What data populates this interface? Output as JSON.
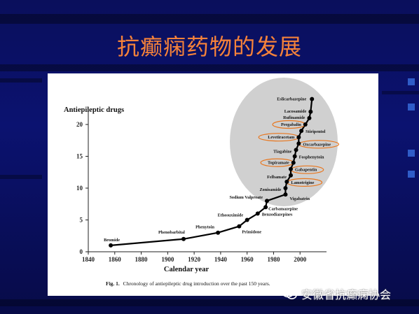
{
  "slide": {
    "title": "抗癫痫药物的发展",
    "watermark": "安徽省抗癫痫协会"
  },
  "chart_data": {
    "type": "line",
    "title": "",
    "ylabel": "Antiepileptic drugs",
    "xlabel": "Calendar year",
    "xlim": [
      1840,
      2020
    ],
    "ylim": [
      0,
      22
    ],
    "x_ticks": [
      1840,
      1860,
      1880,
      1900,
      1920,
      1940,
      1960,
      1980,
      2000
    ],
    "y_ticks": [
      0,
      5,
      10,
      15,
      20
    ],
    "caption_bold": "Fig. 1.",
    "caption_text": "Chronology of antiepileptic drug introduction over the past 150 years.",
    "series": [
      {
        "points": [
          {
            "x": 1857,
            "y": 1,
            "label": "Bromide",
            "circled": false
          },
          {
            "x": 1912,
            "y": 2,
            "label": "Phenobarbital",
            "circled": false
          },
          {
            "x": 1938,
            "y": 3,
            "label": "Phenytoin",
            "circled": false
          },
          {
            "x": 1954,
            "y": 4,
            "label": "Primidone",
            "circled": false
          },
          {
            "x": 1960,
            "y": 5,
            "label": "Ethosuximide",
            "circled": false
          },
          {
            "x": 1968,
            "y": 6,
            "label": "Benzodiazepines",
            "circled": false
          },
          {
            "x": 1974,
            "y": 7,
            "label": "Carbamazepine",
            "circled": false
          },
          {
            "x": 1975,
            "y": 8,
            "label": "Sodium Valproate",
            "circled": false
          },
          {
            "x": 1989,
            "y": 9,
            "label": "Vigabatrin",
            "circled": false
          },
          {
            "x": 1989,
            "y": 10,
            "label": "Zonisamide",
            "circled": false
          },
          {
            "x": 1990,
            "y": 11,
            "label": "Lamotrigine",
            "circled": true
          },
          {
            "x": 1993,
            "y": 12,
            "label": "Felbamate",
            "circled": false
          },
          {
            "x": 1993,
            "y": 13,
            "label": "Gabapentin",
            "circled": true
          },
          {
            "x": 1995,
            "y": 14,
            "label": "Topiramate",
            "circled": true
          },
          {
            "x": 1996,
            "y": 15,
            "label": "Fosphenytoin",
            "circled": false
          },
          {
            "x": 1997,
            "y": 16,
            "label": "Tiagabine",
            "circled": false
          },
          {
            "x": 1999,
            "y": 17,
            "label": "Oxcarbazepine",
            "circled": true
          },
          {
            "x": 1999,
            "y": 18,
            "label": "Levetiracetam",
            "circled": true
          },
          {
            "x": 2001,
            "y": 19,
            "label": "Stiripentol",
            "circled": false
          },
          {
            "x": 2004,
            "y": 20,
            "label": "Pregabalin",
            "circled": true
          },
          {
            "x": 2007,
            "y": 21,
            "label": "Rufinamide",
            "circled": false
          },
          {
            "x": 2008,
            "y": 22,
            "label": "Lacosamide",
            "circled": false
          },
          {
            "x": 2009,
            "y": 24,
            "label": "Eslicarbazepine",
            "circled": false
          }
        ]
      }
    ],
    "colors": {
      "line": "#000000",
      "highlight_circle": "#d0d0d0",
      "callout_outline": "#e8761e",
      "title": "#f5823a"
    }
  }
}
